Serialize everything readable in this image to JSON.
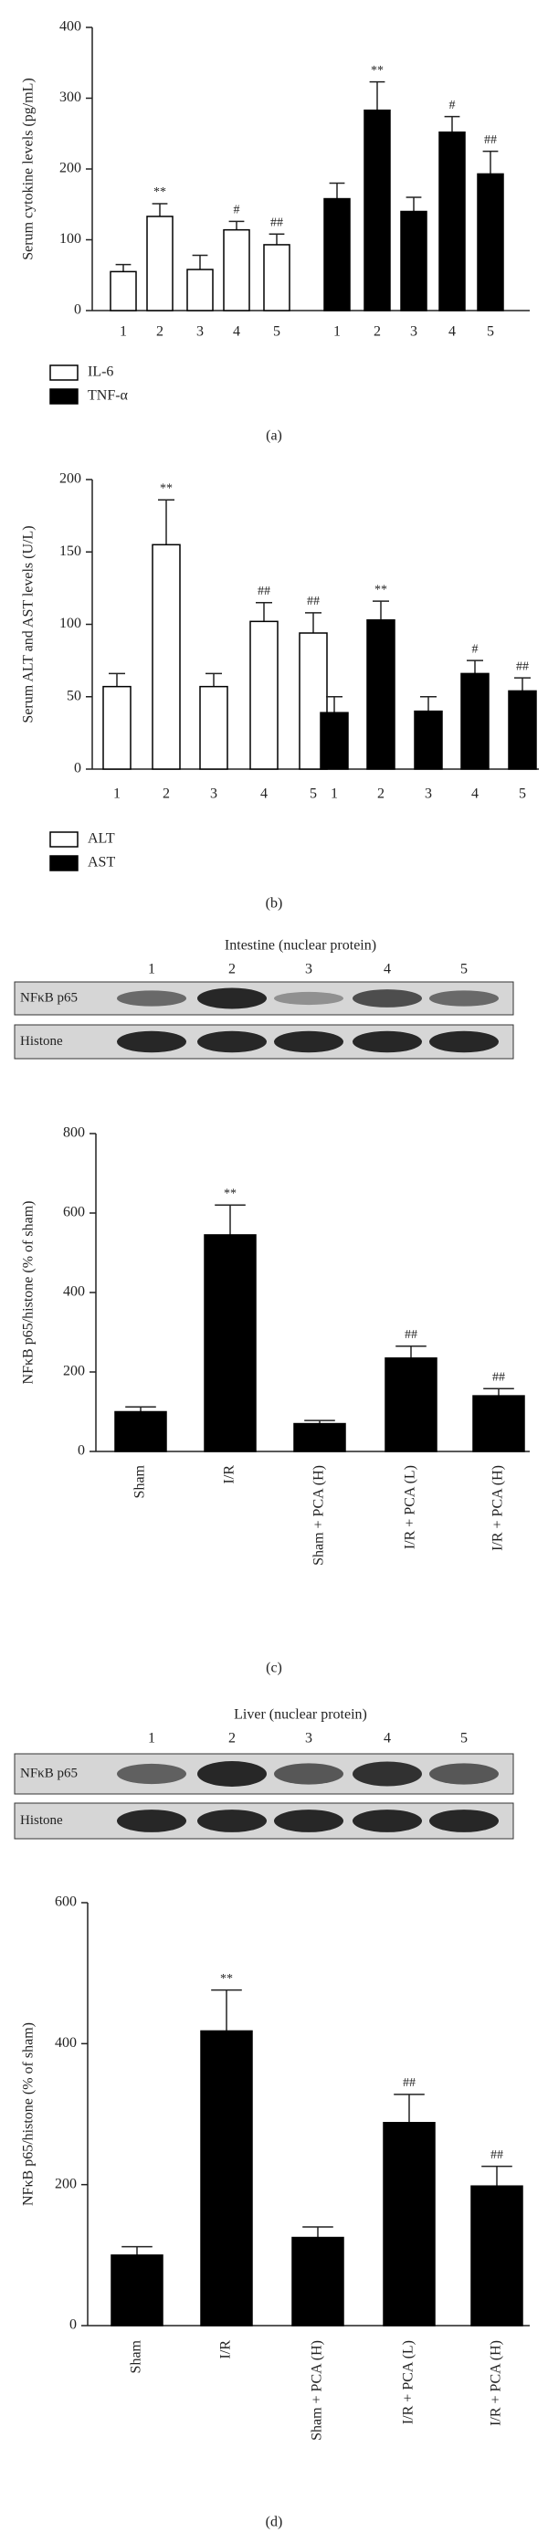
{
  "chart_data": [
    {
      "type": "bar",
      "label": "(a)",
      "ylabel": "Serum cytokine levels (pg/mL)",
      "categories": [
        "1",
        "2",
        "3",
        "4",
        "5"
      ],
      "ylim": [
        0,
        400
      ],
      "yticks": [
        0,
        100,
        200,
        300,
        400
      ],
      "series": [
        {
          "name": "IL-6",
          "color": "#ffffff",
          "values": [
            55,
            133,
            58,
            114,
            93
          ],
          "errors": [
            10,
            18,
            20,
            12,
            15
          ],
          "annotations": [
            null,
            "**",
            null,
            "#",
            "##"
          ]
        },
        {
          "name": "TNF-α",
          "color": "#000000",
          "values": [
            158,
            283,
            140,
            252,
            193
          ],
          "errors": [
            22,
            40,
            20,
            22,
            32
          ],
          "annotations": [
            null,
            "**",
            null,
            "#",
            "##"
          ]
        }
      ]
    },
    {
      "type": "bar",
      "label": "(b)",
      "ylabel": "Serum ALT and AST levels (U/L)",
      "categories": [
        "1",
        "2",
        "3",
        "4",
        "5"
      ],
      "ylim": [
        0,
        200
      ],
      "yticks": [
        0,
        50,
        100,
        150,
        200
      ],
      "series": [
        {
          "name": "ALT",
          "color": "#ffffff",
          "values": [
            57,
            155,
            57,
            102,
            94
          ],
          "errors": [
            9,
            31,
            9,
            13,
            14
          ],
          "annotations": [
            null,
            "**",
            null,
            "##",
            "##"
          ]
        },
        {
          "name": "AST",
          "color": "#000000",
          "values": [
            39,
            103,
            40,
            66,
            54
          ],
          "errors": [
            11,
            13,
            10,
            9,
            9
          ],
          "annotations": [
            null,
            "**",
            null,
            "#",
            "##"
          ]
        }
      ]
    },
    {
      "type": "bar",
      "label": "(c)",
      "ylabel": "NFκB p65/histone (% of sham)",
      "blot": {
        "title": "Intestine (nuclear protein)",
        "lanes": [
          "1",
          "2",
          "3",
          "4",
          "5"
        ],
        "rows": [
          "NFκB p65",
          "Histone"
        ]
      },
      "categories": [
        "Sham",
        "I/R",
        "Sham + PCA (H)",
        "I/R + PCA (L)",
        "I/R + PCA (H)"
      ],
      "ylim": [
        0,
        800
      ],
      "yticks": [
        0,
        200,
        400,
        600,
        800
      ],
      "series": [
        {
          "color": "#000000",
          "values": [
            100,
            545,
            70,
            235,
            140
          ],
          "errors": [
            12,
            75,
            8,
            30,
            18
          ],
          "annotations": [
            null,
            "**",
            null,
            "##",
            "##"
          ]
        }
      ]
    },
    {
      "type": "bar",
      "label": "(d)",
      "ylabel": "NFκB p65/histone (% of sham)",
      "blot": {
        "title": "Liver (nuclear protein)",
        "lanes": [
          "1",
          "2",
          "3",
          "4",
          "5"
        ],
        "rows": [
          "NFκB p65",
          "Histone"
        ]
      },
      "categories": [
        "Sham",
        "I/R",
        "Sham + PCA (H)",
        "I/R + PCA (L)",
        "I/R + PCA (H)"
      ],
      "ylim": [
        0,
        600
      ],
      "yticks": [
        0,
        200,
        400,
        600
      ],
      "series": [
        {
          "color": "#000000",
          "values": [
            100,
            418,
            125,
            288,
            198
          ],
          "errors": [
            12,
            58,
            15,
            40,
            28
          ],
          "annotations": [
            null,
            "**",
            null,
            "##",
            "##"
          ]
        }
      ]
    }
  ]
}
